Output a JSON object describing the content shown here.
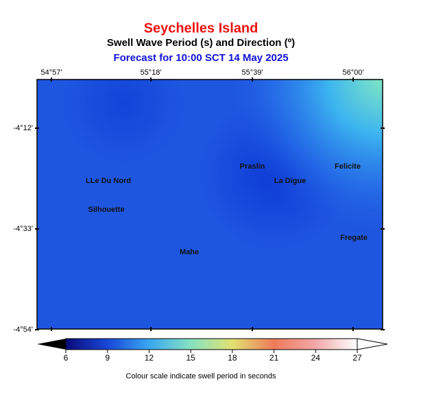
{
  "header": {
    "title": "Seychelles Island",
    "subtitle": "Swell Wave Period (s) and Direction (º)",
    "forecast": "Forecast for  10:00 SCT 14 May 2025"
  },
  "map": {
    "lon_ticks": [
      "54°57'",
      "55°18'",
      "55°39'",
      "56°00'"
    ],
    "lat_ticks": [
      "-4°12'",
      "-4°33'",
      "-4°54'"
    ],
    "places": [
      "Praslin",
      "La Digue",
      "Felicite",
      "LLe Du Nord",
      "Silhouette",
      "Mahe",
      "Fregate"
    ]
  },
  "colorbar": {
    "lim": [
      6,
      27
    ],
    "ticks": [
      6,
      9,
      12,
      15,
      18,
      21,
      24,
      27
    ],
    "colors": [
      "#0a0a7a",
      "#1846d8",
      "#3aa6f0",
      "#86e2c2",
      "#e2e272",
      "#ee7a5a",
      "#f2a8a8",
      "#ffffff"
    ],
    "caption": "Colour scale indicate swell period in seconds"
  }
}
